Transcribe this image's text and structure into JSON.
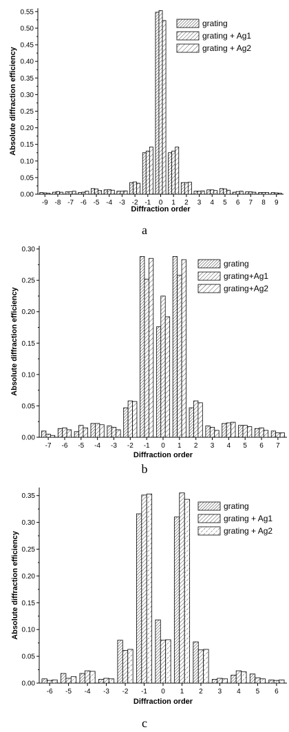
{
  "panels": [
    {
      "letter": "a"
    },
    {
      "letter": "b"
    },
    {
      "letter": "c"
    }
  ],
  "chart_data": [
    {
      "type": "bar",
      "xlabel": "Diffraction order",
      "ylabel": "Absolute diffraction efficiency",
      "ylim": [
        0,
        0.56
      ],
      "yticks": [
        "0.00",
        "0.05",
        "0.10",
        "0.15",
        "0.20",
        "0.25",
        "0.30",
        "0.35",
        "0.40",
        "0.45",
        "0.50",
        "0.55"
      ],
      "categories": [
        "-9",
        "-8",
        "-7",
        "-6",
        "-5",
        "-4",
        "-3",
        "-2",
        "-1",
        "0",
        "1",
        "2",
        "3",
        "4",
        "5",
        "6",
        "7",
        "8",
        "9"
      ],
      "legend_position": "top-right",
      "series": [
        {
          "name": "grating",
          "values": [
            0.005,
            0.006,
            0.007,
            0.005,
            0.017,
            0.013,
            0.009,
            0.035,
            0.125,
            0.548,
            0.125,
            0.035,
            0.009,
            0.013,
            0.017,
            0.006,
            0.007,
            0.005,
            0.005
          ]
        },
        {
          "name": "grating + Ag1",
          "values": [
            0.004,
            0.008,
            0.007,
            0.006,
            0.016,
            0.014,
            0.009,
            0.037,
            0.13,
            0.553,
            0.13,
            0.035,
            0.009,
            0.013,
            0.016,
            0.008,
            0.007,
            0.005,
            0.004
          ]
        },
        {
          "name": "grating + Ag2",
          "values": [
            0.003,
            0.006,
            0.009,
            0.009,
            0.011,
            0.012,
            0.01,
            0.033,
            0.142,
            0.523,
            0.142,
            0.036,
            0.01,
            0.011,
            0.012,
            0.009,
            0.006,
            0.005,
            0.003
          ]
        }
      ]
    },
    {
      "type": "bar",
      "xlabel": "Diffraction order",
      "ylabel": "Absolute diffraction efficiency",
      "ylim": [
        0,
        0.305
      ],
      "yticks": [
        "0.00",
        "0.05",
        "0.10",
        "0.15",
        "0.20",
        "0.25",
        "0.30"
      ],
      "categories": [
        "-7",
        "-6",
        "-5",
        "-4",
        "-3",
        "-2",
        "-1",
        "0",
        "1",
        "2",
        "3",
        "4",
        "5",
        "6",
        "7"
      ],
      "legend_position": "top-right",
      "series": [
        {
          "name": "grating",
          "values": [
            0.01,
            0.014,
            0.009,
            0.022,
            0.018,
            0.047,
            0.288,
            0.176,
            0.288,
            0.047,
            0.018,
            0.022,
            0.019,
            0.014,
            0.01
          ]
        },
        {
          "name": "grating+Ag1",
          "values": [
            0.005,
            0.015,
            0.019,
            0.022,
            0.016,
            0.058,
            0.252,
            0.225,
            0.258,
            0.058,
            0.016,
            0.023,
            0.019,
            0.015,
            0.007
          ]
        },
        {
          "name": "grating+Ag2",
          "values": [
            0.003,
            0.012,
            0.015,
            0.02,
            0.012,
            0.057,
            0.285,
            0.192,
            0.283,
            0.055,
            0.011,
            0.024,
            0.017,
            0.011,
            0.007
          ]
        }
      ]
    },
    {
      "type": "bar",
      "xlabel": "Diffraction order",
      "ylabel": "Absolute diffraction efficiency",
      "ylim": [
        0,
        0.365
      ],
      "yticks": [
        "0.00",
        "0.05",
        "0.10",
        "0.15",
        "0.20",
        "0.25",
        "0.30",
        "0.35"
      ],
      "categories": [
        "-6",
        "-5",
        "-4",
        "-3",
        "-2",
        "-1",
        "0",
        "1",
        "2",
        "3",
        "4",
        "5",
        "6"
      ],
      "legend_position": "top-right",
      "series": [
        {
          "name": "grating",
          "values": [
            0.008,
            0.018,
            0.018,
            0.007,
            0.08,
            0.316,
            0.118,
            0.31,
            0.077,
            0.007,
            0.015,
            0.017,
            0.006
          ]
        },
        {
          "name": "grating + Ag1",
          "values": [
            0.005,
            0.009,
            0.023,
            0.009,
            0.061,
            0.351,
            0.08,
            0.355,
            0.062,
            0.009,
            0.023,
            0.01,
            0.005
          ]
        },
        {
          "name": "grating + Ag2",
          "values": [
            0.006,
            0.012,
            0.022,
            0.008,
            0.063,
            0.353,
            0.081,
            0.343,
            0.063,
            0.008,
            0.021,
            0.008,
            0.006
          ]
        }
      ]
    }
  ]
}
